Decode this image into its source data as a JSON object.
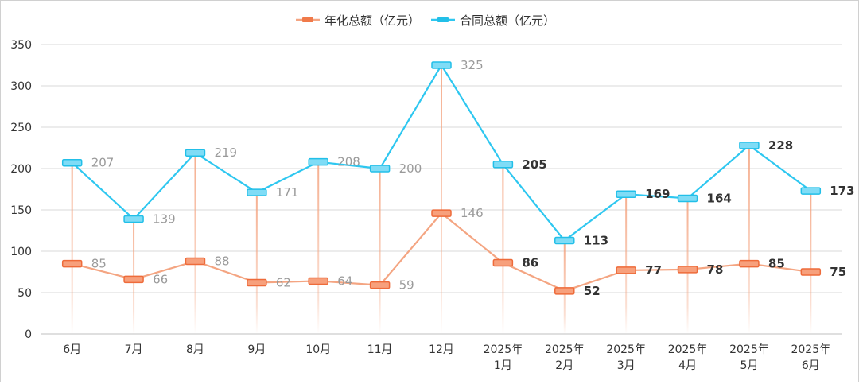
{
  "chart_data": {
    "type": "line",
    "categories": [
      "6月",
      "7月",
      "8月",
      "9月",
      "10月",
      "11月",
      "12月",
      "2025年\n1月",
      "2025年\n2月",
      "2025年\n3月",
      "2025年\n4月",
      "2025年\n5月",
      "2025年\n6月"
    ],
    "series": [
      {
        "name": "年化总额（亿元）",
        "values": [
          85,
          66,
          88,
          62,
          64,
          59,
          146,
          86,
          52,
          77,
          78,
          85,
          75
        ],
        "color": "#f4a582",
        "marker_color": "#f07a4a"
      },
      {
        "name": "合同总额（亿元）",
        "values": [
          207,
          139,
          219,
          171,
          208,
          200,
          325,
          205,
          113,
          169,
          164,
          228,
          173
        ],
        "color": "#2ec7f0",
        "marker_color": "#2ec7f0"
      }
    ],
    "yticks": [
      0,
      50,
      100,
      150,
      200,
      250,
      300,
      350
    ],
    "ylim": [
      0,
      350
    ],
    "grid": true,
    "legend_position": "top-center",
    "bold_labels_from_index": 7,
    "drop_lines": true
  }
}
